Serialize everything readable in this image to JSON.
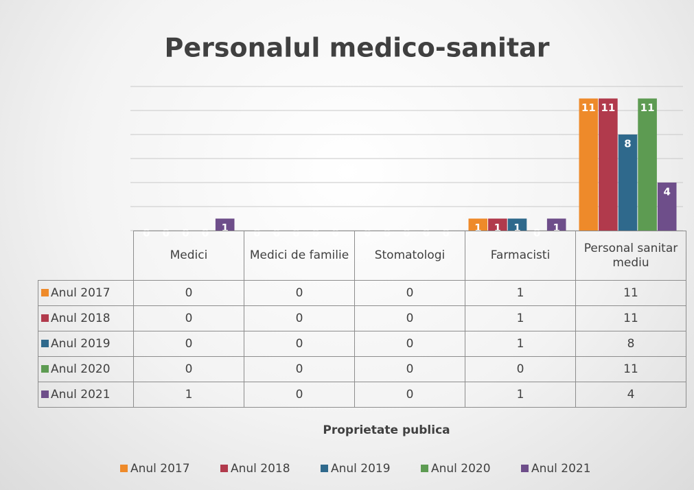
{
  "chart_data": {
    "type": "bar",
    "title": "Personalul medico-sanitar",
    "x_label": "Proprietate publica",
    "categories": [
      "Medici",
      "Medici de familie",
      "Stomatologi",
      "Farmacisti",
      "Personal sanitar mediu"
    ],
    "series": [
      {
        "name": "Anul 2017",
        "color": "#ee8a2a",
        "values": [
          0,
          0,
          0,
          1,
          11
        ]
      },
      {
        "name": "Anul 2018",
        "color": "#b13a4c",
        "values": [
          0,
          0,
          0,
          1,
          11
        ]
      },
      {
        "name": "Anul 2019",
        "color": "#2f698c",
        "values": [
          0,
          0,
          0,
          1,
          8
        ]
      },
      {
        "name": "Anul 2020",
        "color": "#5d9b52",
        "values": [
          0,
          0,
          0,
          0,
          11
        ]
      },
      {
        "name": "Anul 2021",
        "color": "#6e4e8a",
        "values": [
          1,
          0,
          0,
          1,
          4
        ]
      }
    ],
    "ylim": [
      0,
      12
    ],
    "yticks": [
      0,
      2,
      4,
      6,
      8,
      10,
      12
    ],
    "grid": true,
    "data_table": true,
    "legend": "bottom"
  }
}
